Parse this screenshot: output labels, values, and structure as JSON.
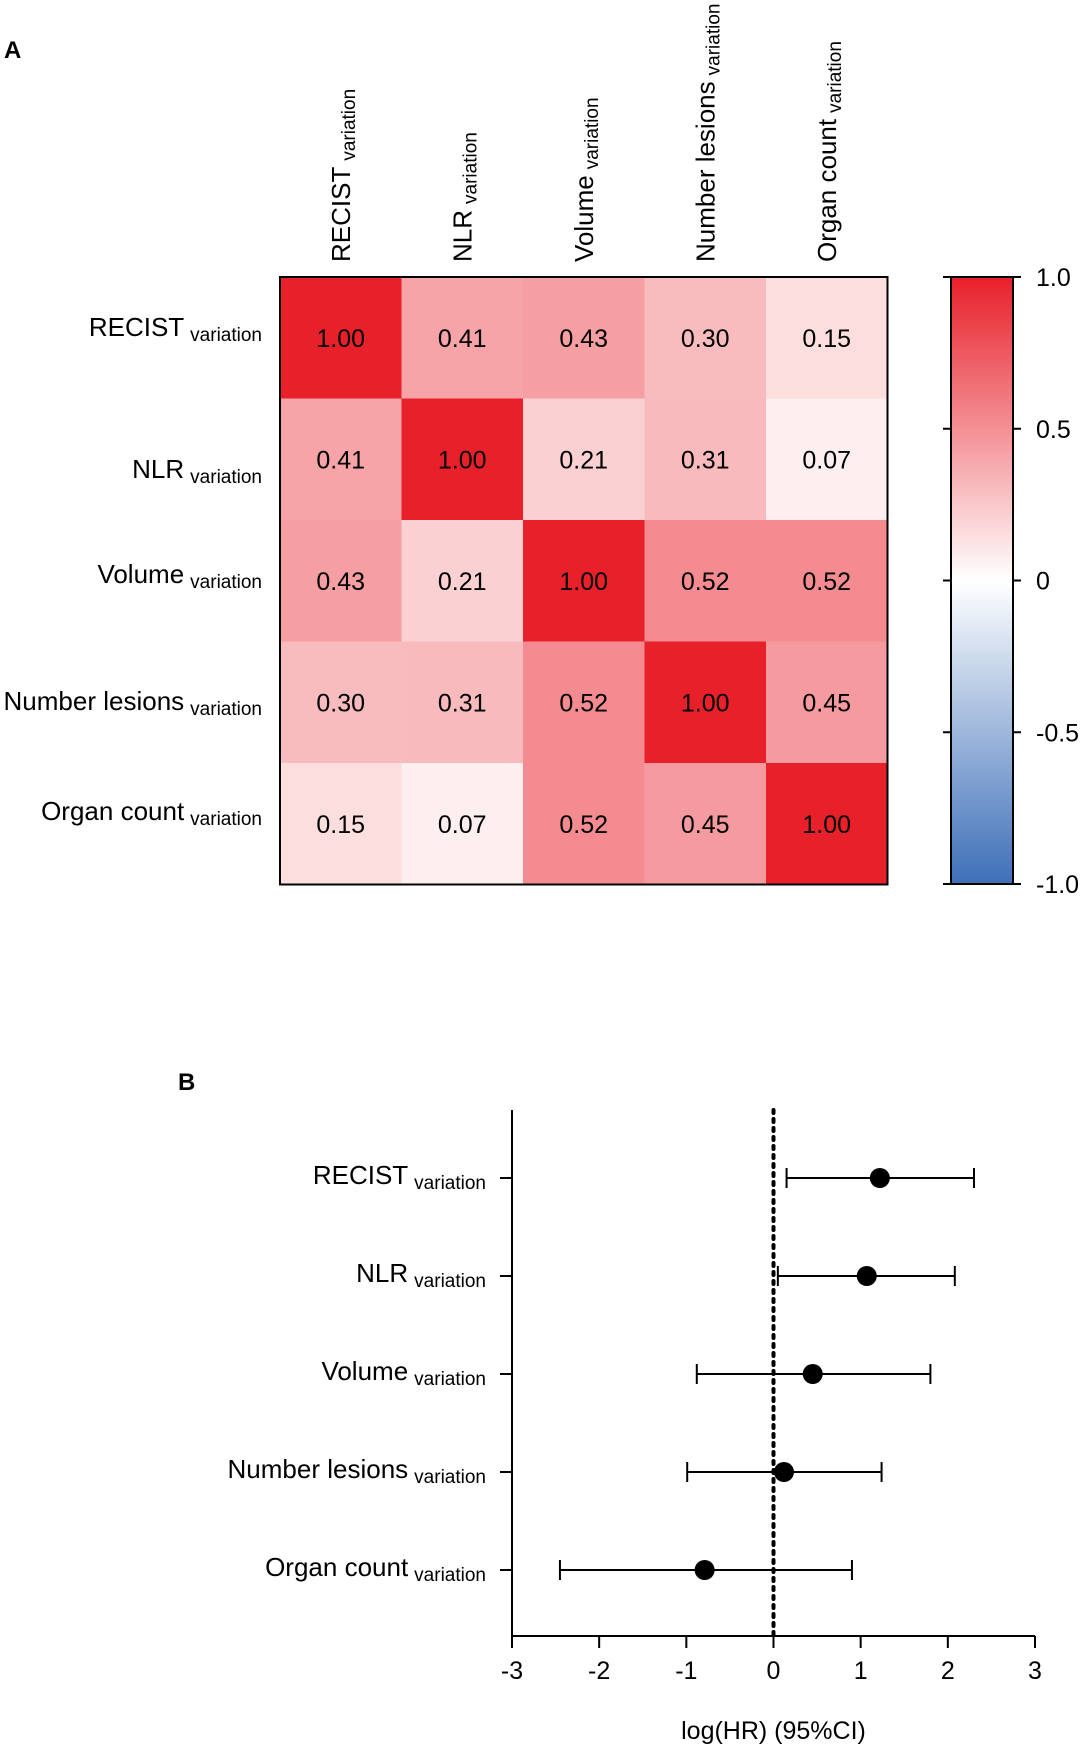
{
  "panel_a_label": "A",
  "panel_b_label": "B",
  "variation_suffix": "variation",
  "chart_data": [
    {
      "type": "heatmap",
      "title": "",
      "variables": [
        "RECIST",
        "NLR",
        "Volume",
        "Number lesions",
        "Organ count"
      ],
      "suffix": "variation",
      "matrix": [
        [
          1.0,
          0.41,
          0.43,
          0.3,
          0.15
        ],
        [
          0.41,
          1.0,
          0.21,
          0.31,
          0.07
        ],
        [
          0.43,
          0.21,
          1.0,
          0.52,
          0.52
        ],
        [
          0.3,
          0.31,
          0.52,
          1.0,
          0.45
        ],
        [
          0.15,
          0.07,
          0.52,
          0.45,
          1.0
        ]
      ],
      "colorbar": {
        "range": [
          -1.0,
          1.0
        ],
        "ticks": [
          1.0,
          0.5,
          0,
          -0.5,
          -1.0
        ],
        "tick_labels": [
          "1.0",
          "0.5",
          "0",
          "-0.5",
          "-1.0"
        ],
        "colors": {
          "negative": "#3d6fb8",
          "zero": "#ffffff",
          "positive": "#e8202a"
        }
      }
    },
    {
      "type": "scatter",
      "subtype": "forest",
      "xlabel": "log(HR) (95%CI)",
      "xlim": [
        -3,
        3
      ],
      "xticks": [
        -3,
        -2,
        -1,
        0,
        1,
        2,
        3
      ],
      "reference_line": 0,
      "categories": [
        "RECIST",
        "NLR",
        "Volume",
        "Number lesions",
        "Organ count"
      ],
      "suffix": "variation",
      "estimates": [
        1.22,
        1.07,
        0.45,
        0.12,
        -0.79
      ],
      "ci_low": [
        0.15,
        0.05,
        -0.88,
        -0.99,
        -2.45
      ],
      "ci_high": [
        2.3,
        2.08,
        1.8,
        1.24,
        0.9
      ]
    }
  ]
}
